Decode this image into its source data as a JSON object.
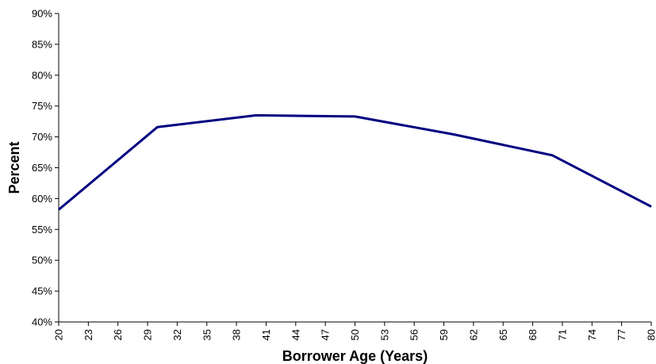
{
  "chart_data": {
    "type": "line",
    "title": "",
    "xlabel": "Borrower Age (Years)",
    "ylabel": "Percent",
    "x_ticks": [
      20,
      23,
      26,
      29,
      32,
      35,
      38,
      41,
      44,
      47,
      50,
      53,
      56,
      59,
      62,
      65,
      68,
      71,
      74,
      77,
      80
    ],
    "xlim": [
      20,
      80
    ],
    "ylim": [
      40,
      90
    ],
    "y_ticks": [
      40,
      45,
      50,
      55,
      60,
      65,
      70,
      75,
      80,
      85,
      90
    ],
    "y_tick_suffix": "%",
    "grid": false,
    "legend": "none",
    "series": [
      {
        "x": [
          20,
          30,
          40,
          50,
          60,
          70,
          80
        ],
        "values": [
          58.2,
          71.6,
          73.5,
          73.3,
          70.4,
          67.0,
          58.7
        ]
      }
    ],
    "colors": {
      "line": "#000080",
      "axis": "#000000"
    }
  }
}
